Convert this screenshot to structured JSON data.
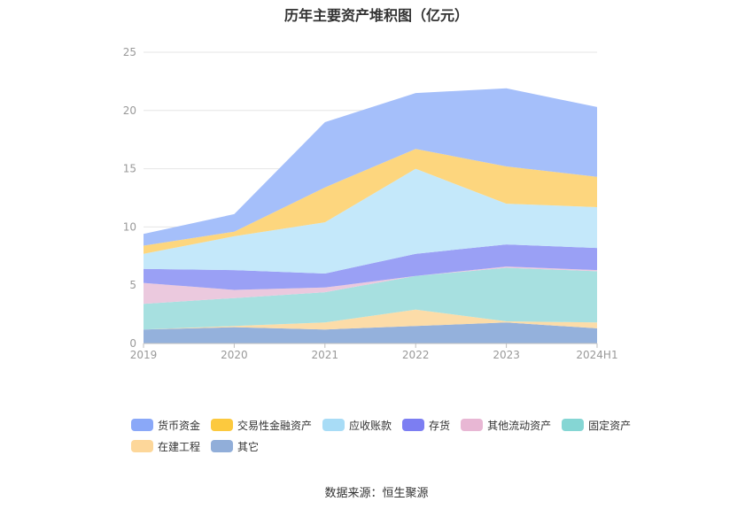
{
  "chart_data": {
    "type": "area",
    "stacked": true,
    "title": "历年主要资产堆积图（亿元）",
    "categories": [
      "2019",
      "2020",
      "2021",
      "2022",
      "2023",
      "2024H1"
    ],
    "ylim": [
      0,
      25
    ],
    "yticks": [
      0,
      5,
      10,
      15,
      20,
      25
    ],
    "grid": true,
    "legend_position": "bottom",
    "series": [
      {
        "name": "其它",
        "color": "#94b1dc",
        "values": [
          1.2,
          1.4,
          1.2,
          1.5,
          1.8,
          1.3
        ]
      },
      {
        "name": "在建工程",
        "color": "#fcdca8",
        "values": [
          0.0,
          0.1,
          0.6,
          1.4,
          0.1,
          0.5
        ]
      },
      {
        "name": "固定资产",
        "color": "#a7e0e0",
        "values": [
          2.2,
          2.4,
          2.6,
          2.9,
          4.6,
          4.4
        ]
      },
      {
        "name": "其他流动资产",
        "color": "#ebc9de",
        "values": [
          1.8,
          0.7,
          0.4,
          0.0,
          0.1,
          0.1
        ]
      },
      {
        "name": "存货",
        "color": "#9aa0f5",
        "values": [
          1.2,
          1.7,
          1.2,
          1.9,
          1.9,
          1.9
        ]
      },
      {
        "name": "应收账款",
        "color": "#c4e8fa",
        "values": [
          1.3,
          2.9,
          4.4,
          7.3,
          3.5,
          3.5
        ]
      },
      {
        "name": "交易性金融资产",
        "color": "#fdd67e",
        "values": [
          0.7,
          0.4,
          3.0,
          1.7,
          3.2,
          2.6
        ]
      },
      {
        "name": "货币资金",
        "color": "#a5bffa",
        "values": [
          1.0,
          1.5,
          5.6,
          4.8,
          6.7,
          6.0
        ]
      }
    ],
    "legend": [
      {
        "name": "货币资金",
        "color": "#8aa8f8"
      },
      {
        "name": "交易性金融资产",
        "color": "#fcc93e"
      },
      {
        "name": "应收账款",
        "color": "#a8dcf6"
      },
      {
        "name": "存货",
        "color": "#7c7ef2"
      },
      {
        "name": "其他流动资产",
        "color": "#e8b7d4"
      },
      {
        "name": "固定资产",
        "color": "#85d6d4"
      },
      {
        "name": "在建工程",
        "color": "#fdd79a"
      },
      {
        "name": "其它",
        "color": "#91aed9"
      }
    ],
    "source": "数据来源：恒生聚源"
  }
}
